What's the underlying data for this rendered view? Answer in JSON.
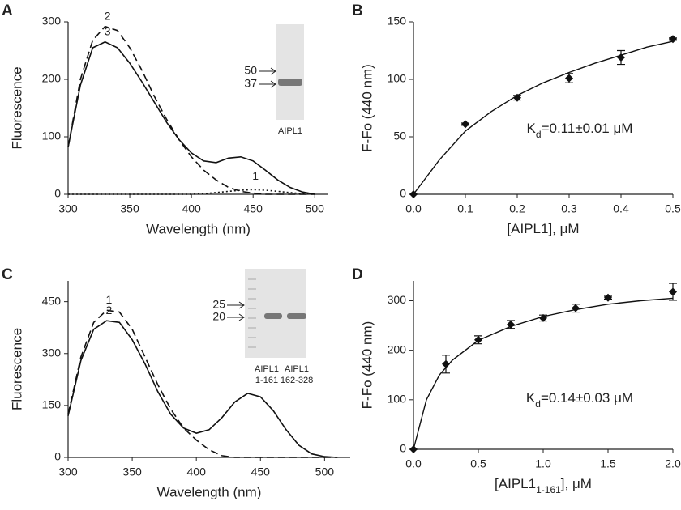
{
  "chart_data": [
    {
      "type": "line",
      "panel": "A",
      "xlabel": "Wavelength (nm)",
      "ylabel": "Fluorescence",
      "xlim": [
        300,
        511
      ],
      "xticks": [
        300,
        350,
        400,
        450,
        500
      ],
      "ylim": [
        0,
        300
      ],
      "yticks": [
        0,
        100,
        200,
        300
      ],
      "x": [
        300,
        310,
        320,
        330,
        340,
        350,
        360,
        370,
        380,
        390,
        400,
        410,
        420,
        430,
        440,
        450,
        460,
        470,
        480,
        490,
        500
      ],
      "series": [
        {
          "name": "1",
          "style": "dotted",
          "color": "#111",
          "values": [
            0,
            0,
            0,
            0,
            0,
            0,
            0,
            0,
            0,
            0,
            0,
            1,
            3,
            5,
            7,
            8,
            7,
            5,
            3,
            1,
            0
          ]
        },
        {
          "name": "2",
          "style": "dashed",
          "color": "#111",
          "values": [
            82,
            200,
            268,
            292,
            285,
            255,
            215,
            170,
            130,
            95,
            65,
            42,
            25,
            12,
            5,
            2,
            0,
            0,
            0,
            0,
            0
          ]
        },
        {
          "name": "3",
          "style": "solid",
          "color": "#111",
          "values": [
            82,
            190,
            255,
            265,
            255,
            228,
            195,
            160,
            125,
            95,
            72,
            58,
            55,
            63,
            65,
            58,
            42,
            25,
            12,
            4,
            0
          ]
        }
      ],
      "gel": {
        "markers": [
          "50",
          "37"
        ],
        "lanes": [
          [
            "AIPL1"
          ]
        ]
      }
    },
    {
      "type": "scatter",
      "panel": "B",
      "xlabel": {
        "text": "[AIPL1], μM"
      },
      "ylabel": "F-Fo (440 nm)",
      "xlim": [
        0,
        0.5
      ],
      "xticks": [
        {
          "value": 0,
          "label": "0.0"
        },
        0.1,
        0.2,
        0.3,
        0.4,
        0.5
      ],
      "ylim": [
        0,
        150
      ],
      "yticks": [
        0,
        50,
        100,
        150
      ],
      "series": [
        {
          "x": [
            0,
            0.1,
            0.2,
            0.3,
            0.4,
            0.5
          ],
          "values": [
            0,
            61,
            84,
            101,
            119,
            135
          ],
          "errors": [
            0,
            1,
            2,
            4,
            6,
            1
          ],
          "color": "#111"
        },
        {
          "x": [
            0,
            0.05,
            0.1,
            0.15,
            0.2,
            0.25,
            0.3,
            0.35,
            0.4,
            0.45,
            0.5
          ],
          "values": [
            0,
            30,
            55,
            72,
            86,
            97,
            106,
            114,
            121,
            128,
            133
          ],
          "style": "solid",
          "color": "#111"
        }
      ],
      "annotation": {
        "text": "K",
        "sub": "d",
        "tail": "=0.11±0.01 μM"
      }
    },
    {
      "type": "line",
      "panel": "C",
      "xlabel": "Wavelength (nm)",
      "ylabel": "Fluorescence",
      "xlim": [
        300,
        520
      ],
      "xticks": [
        300,
        350,
        400,
        450,
        500
      ],
      "ylim": [
        0,
        510
      ],
      "yticks": [
        0,
        150,
        300,
        450
      ],
      "x": [
        300,
        310,
        320,
        330,
        340,
        350,
        360,
        370,
        380,
        390,
        400,
        410,
        420,
        430,
        440,
        450,
        460,
        470,
        480,
        490,
        500,
        510
      ],
      "series": [
        {
          "name": "1",
          "style": "dashed",
          "color": "#111",
          "values": [
            125,
            290,
            390,
            425,
            420,
            370,
            290,
            210,
            140,
            85,
            50,
            22,
            5,
            0,
            0,
            0,
            0,
            0,
            0,
            0,
            0,
            0
          ]
        },
        {
          "name": "2",
          "style": "solid",
          "color": "#111",
          "values": [
            120,
            280,
            370,
            395,
            390,
            340,
            270,
            190,
            125,
            85,
            70,
            80,
            115,
            160,
            185,
            175,
            135,
            80,
            35,
            10,
            2,
            0
          ]
        }
      ],
      "gel": {
        "markers": [
          "25",
          "20"
        ],
        "lanes": [
          [
            "AIPL1",
            "1-161"
          ],
          [
            "AIPL1",
            "162-328"
          ]
        ]
      }
    },
    {
      "type": "scatter",
      "panel": "D",
      "xlabel": {
        "text": "[AIPL1",
        "sub": "1-161",
        "tail": "], μM"
      },
      "ylabel": "F-Fo (440 nm)",
      "xlim": [
        0,
        2
      ],
      "xticks": [
        {
          "value": 0,
          "label": "0.0"
        },
        0.5,
        {
          "value": 1,
          "label": "1.0"
        },
        1.5,
        {
          "value": 2,
          "label": "2.0"
        }
      ],
      "ylim": [
        0,
        340
      ],
      "yticks": [
        0,
        100,
        200,
        300
      ],
      "series": [
        {
          "x": [
            0,
            0.25,
            0.5,
            0.75,
            1,
            1.25,
            1.5,
            2
          ],
          "values": [
            0,
            172,
            221,
            252,
            265,
            285,
            306,
            318
          ],
          "errors": [
            0,
            18,
            8,
            8,
            6,
            8,
            3,
            17
          ],
          "color": "#111"
        },
        {
          "x": [
            0,
            0.1,
            0.2,
            0.3,
            0.5,
            0.75,
            1,
            1.25,
            1.5,
            1.75,
            2
          ],
          "values": [
            0,
            100,
            150,
            180,
            220,
            248,
            268,
            282,
            293,
            300,
            305
          ],
          "style": "solid",
          "color": "#111"
        }
      ],
      "annotation": {
        "text": "K",
        "sub": "d",
        "tail": "=0.14±0.03 μM"
      }
    }
  ]
}
